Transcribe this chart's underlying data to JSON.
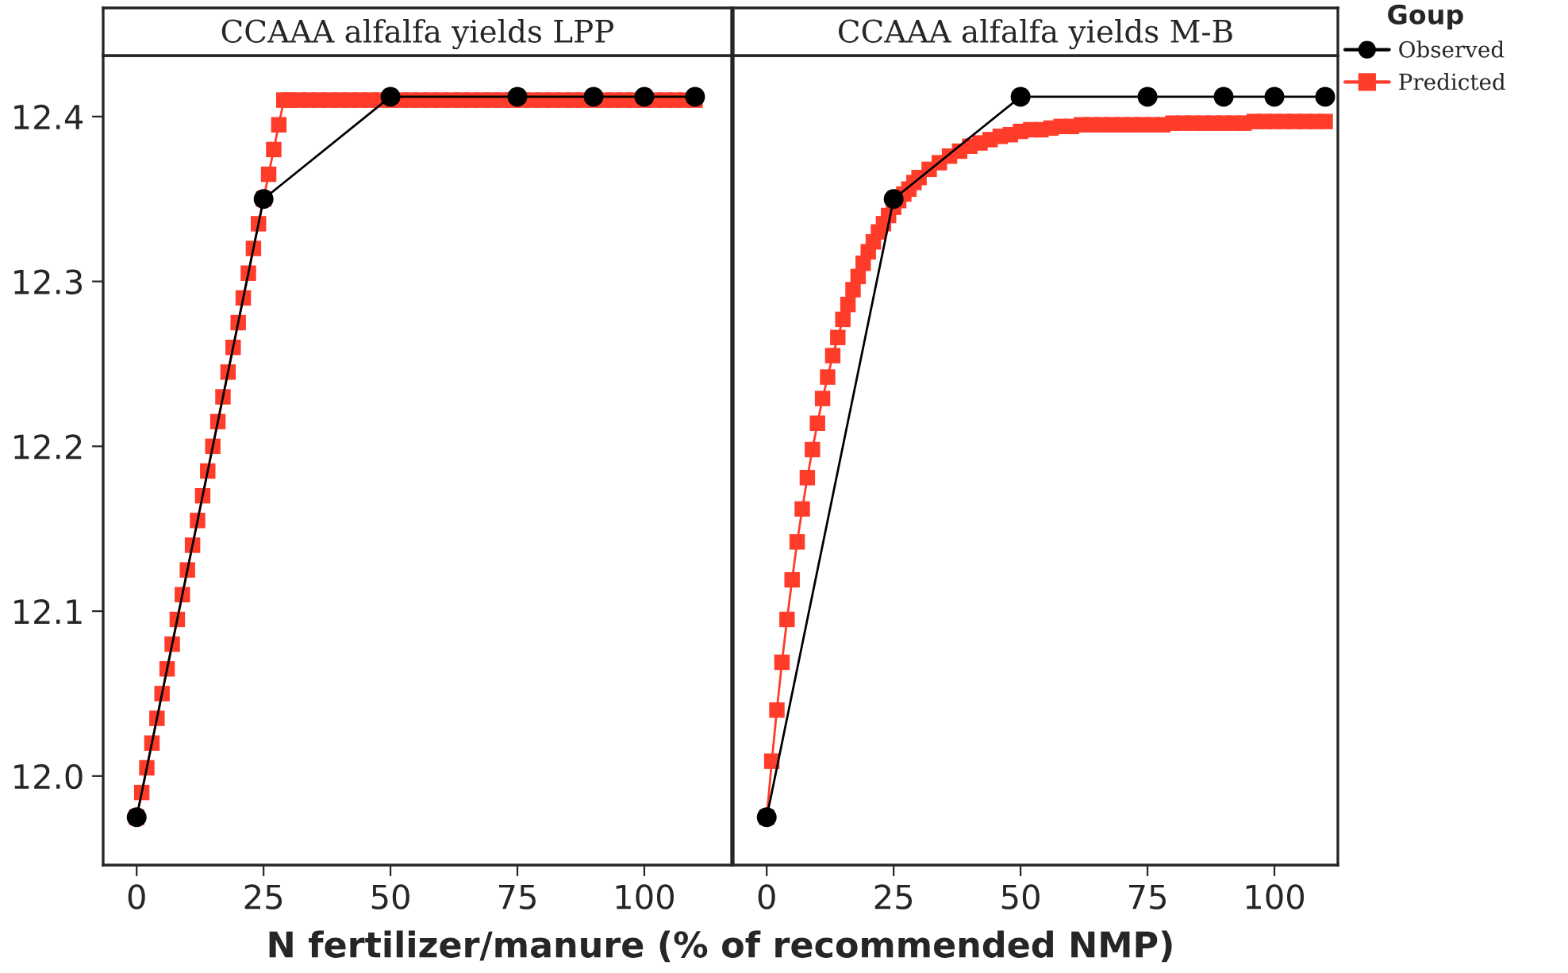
{
  "chart_data": [
    {
      "type": "line",
      "title": "CCAAA alfalfa yields LPP",
      "xlabel": "N fertilizer/manure (% of recommended NMP)",
      "xlim": [
        -6.6,
        117.2
      ],
      "xticks": [
        0,
        25,
        50,
        75,
        100
      ],
      "ylim": [
        11.946,
        12.437
      ],
      "yticks": [
        {
          "value": 12.0,
          "label": "12.0"
        },
        {
          "value": 12.1,
          "label": "12.1"
        },
        {
          "value": 12.2,
          "label": "12.2"
        },
        {
          "value": 12.3,
          "label": "12.3"
        },
        {
          "value": 12.4,
          "label": "12.4"
        }
      ],
      "grid": false,
      "line_style": "solid",
      "series": [
        {
          "color": "#000000",
          "marker": "circle",
          "x": [
            0,
            25,
            50,
            75,
            90,
            100,
            110
          ],
          "values": [
            11.975,
            12.35,
            12.412,
            12.412,
            12.412,
            12.412,
            12.412
          ]
        },
        {
          "color": "#ff3b2a",
          "marker": "square",
          "x": [
            0,
            1,
            2,
            3,
            4,
            5,
            6,
            7,
            8,
            9,
            10,
            11,
            12,
            13,
            14,
            15,
            16,
            17,
            18,
            19,
            20,
            21,
            22,
            23,
            24,
            25,
            26,
            27,
            28,
            29,
            30,
            32,
            34,
            36,
            38,
            40,
            42,
            44,
            46,
            48,
            50,
            52,
            54,
            56,
            58,
            60,
            62,
            64,
            66,
            68,
            70,
            72,
            74,
            76,
            78,
            80,
            82,
            84,
            86,
            88,
            90,
            92,
            94,
            96,
            98,
            100,
            102,
            104,
            106,
            108,
            110
          ],
          "values": [
            11.975,
            11.99,
            12.005,
            12.02,
            12.035,
            12.05,
            12.065,
            12.08,
            12.095,
            12.11,
            12.125,
            12.14,
            12.155,
            12.17,
            12.185,
            12.2,
            12.215,
            12.23,
            12.245,
            12.26,
            12.275,
            12.29,
            12.305,
            12.32,
            12.335,
            12.35,
            12.365,
            12.38,
            12.395,
            12.41,
            12.41,
            12.41,
            12.41,
            12.41,
            12.41,
            12.41,
            12.41,
            12.41,
            12.41,
            12.41,
            12.41,
            12.41,
            12.41,
            12.41,
            12.41,
            12.41,
            12.41,
            12.41,
            12.41,
            12.41,
            12.41,
            12.41,
            12.41,
            12.41,
            12.41,
            12.41,
            12.41,
            12.41,
            12.41,
            12.41,
            12.41,
            12.41,
            12.41,
            12.41,
            12.41,
            12.41,
            12.41,
            12.41,
            12.41,
            12.41,
            12.41
          ]
        }
      ]
    },
    {
      "type": "line",
      "title": "CCAAA alfalfa yields M-B",
      "xlim": [
        -6.6,
        112.5
      ],
      "xticks": [
        0,
        25,
        50,
        75,
        100
      ],
      "ylim": [
        11.946,
        12.437
      ],
      "tick_labels": "x",
      "grid": false,
      "legend": "right",
      "legend_title": "Goup",
      "line_style": "solid",
      "series": [
        {
          "name": "Observed",
          "color": "#000000",
          "marker": "circle",
          "x": [
            0,
            25,
            50,
            75,
            90,
            100,
            110
          ],
          "values": [
            11.975,
            12.35,
            12.412,
            12.412,
            12.412,
            12.412,
            12.412
          ]
        },
        {
          "name": "Predicted",
          "color": "#ff3b2a",
          "marker": "square",
          "x": [
            0,
            1,
            2,
            3,
            4,
            5,
            6,
            7,
            8,
            9,
            10,
            11,
            12,
            13,
            14,
            15,
            16,
            17,
            18,
            19,
            20,
            21,
            22,
            23,
            24,
            25,
            26,
            27,
            28,
            29,
            30,
            32,
            34,
            36,
            38,
            40,
            42,
            44,
            46,
            48,
            50,
            52,
            54,
            56,
            58,
            60,
            62,
            64,
            66,
            68,
            70,
            72,
            74,
            76,
            78,
            80,
            82,
            84,
            86,
            88,
            90,
            92,
            94,
            96,
            98,
            100,
            102,
            104,
            106,
            108,
            110
          ],
          "values": [
            11.975,
            12.009,
            12.04,
            12.069,
            12.095,
            12.119,
            12.142,
            12.162,
            12.181,
            12.198,
            12.214,
            12.229,
            12.242,
            12.255,
            12.266,
            12.277,
            12.286,
            12.295,
            12.303,
            12.311,
            12.318,
            12.324,
            12.33,
            12.335,
            12.34,
            12.345,
            12.349,
            12.353,
            12.356,
            12.36,
            12.363,
            12.368,
            12.372,
            12.376,
            12.379,
            12.382,
            12.384,
            12.386,
            12.388,
            12.389,
            12.391,
            12.392,
            12.392,
            12.393,
            12.394,
            12.394,
            12.395,
            12.395,
            12.395,
            12.395,
            12.395,
            12.395,
            12.395,
            12.395,
            12.395,
            12.396,
            12.396,
            12.396,
            12.396,
            12.396,
            12.396,
            12.396,
            12.396,
            12.397,
            12.397,
            12.397,
            12.397,
            12.397,
            12.397,
            12.397,
            12.397
          ]
        }
      ]
    }
  ]
}
